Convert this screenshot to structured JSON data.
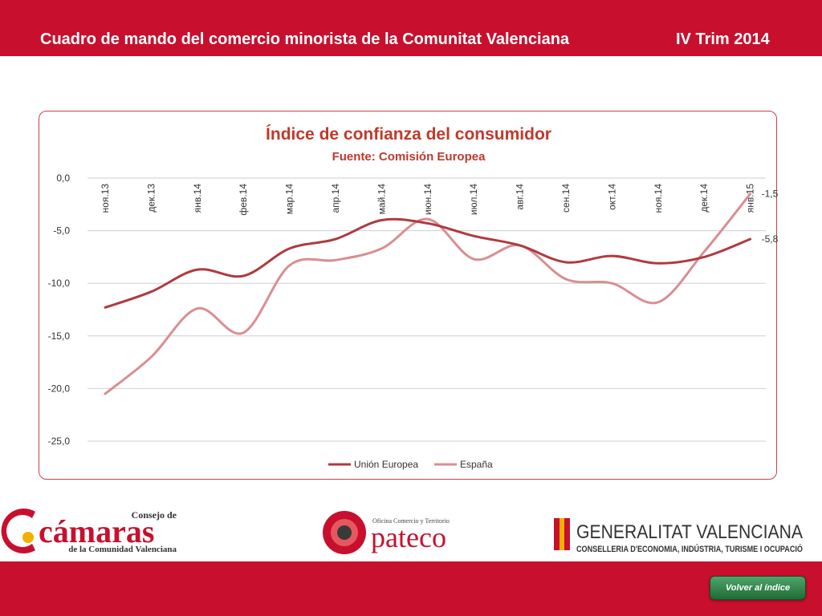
{
  "header": {
    "title": "Cuadro de mando del comercio minorista de la Comunitat Valenciana",
    "period": "IV Trim 2014"
  },
  "colors": {
    "brand_red": "#c8102e",
    "series_eu": "#b03a3f",
    "series_es": "#d98e92",
    "title_red": "#c0392b"
  },
  "chart_data": {
    "type": "line",
    "title": "Índice de confianza del consumidor",
    "subtitle": "Fuente: Comisión Europea",
    "categories": [
      "ноя.13",
      "дек.13",
      "янв.14",
      "фев.14",
      "мар.14",
      "апр.14",
      "май.14",
      "июн.14",
      "июл.14",
      "авг.14",
      "сен.14",
      "окт.14",
      "ноя.14",
      "дек.14",
      "янв.15"
    ],
    "series": [
      {
        "name": "Unión Europea",
        "values": [
          -12.3,
          -10.8,
          -8.7,
          -9.3,
          -6.7,
          -5.8,
          -4.0,
          -4.3,
          -5.5,
          -6.4,
          -8.0,
          -7.4,
          -8.1,
          -7.5,
          -5.8
        ]
      },
      {
        "name": "España",
        "values": [
          -20.5,
          -17.0,
          -12.4,
          -14.7,
          -8.3,
          -7.8,
          -6.7,
          -3.9,
          -7.7,
          -6.4,
          -9.6,
          -10.0,
          -11.8,
          -7.0,
          -1.5
        ]
      }
    ],
    "yticks": [
      "0,0",
      "-5,0",
      "-10,0",
      "-15,0",
      "-20,0",
      "-25,0"
    ],
    "ylim": [
      -25,
      0
    ],
    "end_labels": [
      "-1,5",
      "-5,8"
    ],
    "grid": true,
    "legend_position": "bottom"
  },
  "logos": {
    "camaras_top": "Consejo de",
    "camaras_main": "cámaras",
    "camaras_bottom": "de la Comunidad Valenciana",
    "pateco_top": "Oficina Comercio y Territorio",
    "pateco_main": "pateco",
    "gv_main": "GENERALITAT VALENCIANA",
    "gv_sub": "CONSELLERIA D'ECONOMIA, INDÚSTRIA, TURISME I OCUPACIÓ"
  },
  "footer": {
    "back_label": "Volver al índice"
  }
}
